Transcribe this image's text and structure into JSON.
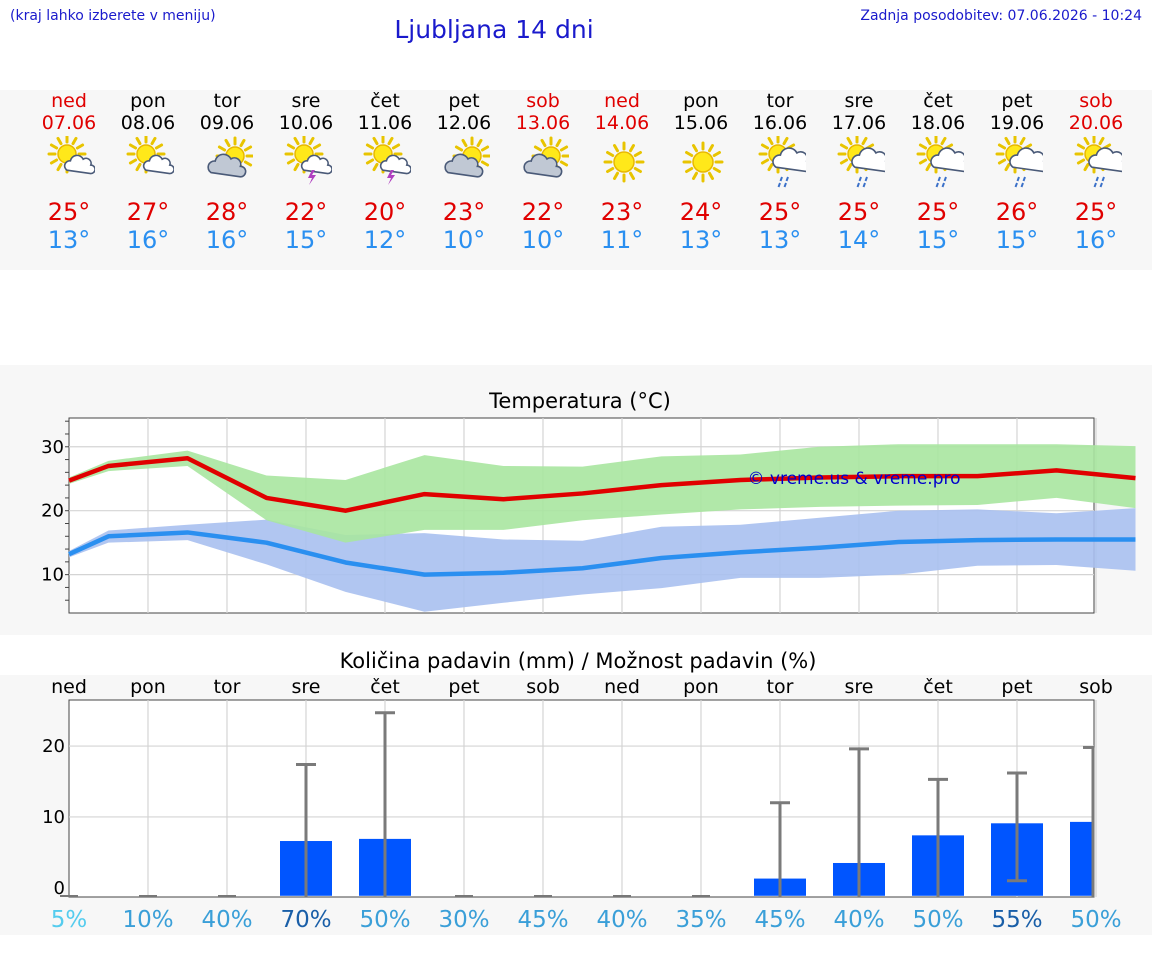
{
  "header": {
    "hint": "(kraj lahko izberete v meniju)",
    "title": "Ljubljana 14 dni",
    "updated": "Zadnja posodobitev: 07.06.2026 - 10:24"
  },
  "colors": {
    "max": "#e00000",
    "min": "#2a8ff0",
    "max_band": "#a8e6a0",
    "min_band": "#a8c0f0",
    "precip_bar": "#0055ff",
    "watermark": "#0000cc"
  },
  "days": [
    {
      "name": "ned",
      "date": "07.06",
      "weekend": true,
      "icon": "sun-cloud",
      "max": "25°",
      "min": "13°"
    },
    {
      "name": "pon",
      "date": "08.06",
      "weekend": false,
      "icon": "sun-cloud",
      "max": "27°",
      "min": "16°"
    },
    {
      "name": "tor",
      "date": "09.06",
      "weekend": false,
      "icon": "cloud-sun",
      "max": "28°",
      "min": "16°"
    },
    {
      "name": "sre",
      "date": "10.06",
      "weekend": false,
      "icon": "sun-cloud-thunder",
      "max": "22°",
      "min": "15°"
    },
    {
      "name": "čet",
      "date": "11.06",
      "weekend": false,
      "icon": "sun-cloud-thunder",
      "max": "20°",
      "min": "12°"
    },
    {
      "name": "pet",
      "date": "12.06",
      "weekend": false,
      "icon": "cloud-sun",
      "max": "23°",
      "min": "10°"
    },
    {
      "name": "sob",
      "date": "13.06",
      "weekend": true,
      "icon": "cloud-sun",
      "max": "22°",
      "min": "10°"
    },
    {
      "name": "ned",
      "date": "14.06",
      "weekend": true,
      "icon": "sun",
      "max": "23°",
      "min": "11°"
    },
    {
      "name": "pon",
      "date": "15.06",
      "weekend": false,
      "icon": "sun",
      "max": "24°",
      "min": "13°"
    },
    {
      "name": "tor",
      "date": "16.06",
      "weekend": false,
      "icon": "sun-cloud-rain",
      "max": "25°",
      "min": "13°"
    },
    {
      "name": "sre",
      "date": "17.06",
      "weekend": false,
      "icon": "sun-cloud-rain",
      "max": "25°",
      "min": "14°"
    },
    {
      "name": "čet",
      "date": "18.06",
      "weekend": false,
      "icon": "sun-cloud-rain",
      "max": "25°",
      "min": "15°"
    },
    {
      "name": "pet",
      "date": "19.06",
      "weekend": false,
      "icon": "sun-cloud-rain",
      "max": "26°",
      "min": "15°"
    },
    {
      "name": "sob",
      "date": "20.06",
      "weekend": true,
      "icon": "sun-cloud-rain",
      "max": "25°",
      "min": "16°"
    }
  ],
  "chart_data": [
    {
      "type": "line",
      "title": "Temperatura (°C)",
      "watermark": "© vreme.us & vreme.pro",
      "y_ticks": [
        10,
        20,
        30
      ],
      "ylim": [
        4,
        34.5
      ],
      "grid": true,
      "x_points": [
        0,
        0.5,
        1.5,
        2.5,
        3.5,
        4.5,
        5.5,
        6.5,
        7.5,
        8.5,
        9.5,
        10.5,
        11.5,
        12.5,
        13.5
      ],
      "series": [
        {
          "values": [
            24.7,
            27,
            28.2,
            22,
            20,
            22.6,
            21.8,
            22.7,
            24,
            24.8,
            25.2,
            25.4,
            25.4,
            26.3,
            25.1
          ]
        },
        {
          "values": [
            13.2,
            16,
            16.6,
            15,
            11.9,
            10,
            10.3,
            11,
            12.6,
            13.5,
            14.2,
            15.1,
            15.4,
            15.5,
            15.5
          ]
        }
      ],
      "max_band": {
        "low": [
          24.2,
          26.2,
          27,
          18.5,
          15,
          17,
          17,
          18.5,
          19.4,
          20.2,
          20.6,
          20.8,
          20.9,
          22,
          20.4
        ],
        "high": [
          25.2,
          27.8,
          29.4,
          25.5,
          24.8,
          28.7,
          27,
          26.9,
          28.5,
          28.8,
          30,
          30.4,
          30.4,
          30.4,
          30.1
        ]
      },
      "min_band": {
        "low": [
          12.7,
          15,
          15.4,
          11.6,
          7.3,
          4.2,
          5.6,
          6.9,
          7.9,
          9.5,
          9.5,
          10,
          11.4,
          11.5,
          10.6
        ],
        "high": [
          13.7,
          16.9,
          17.8,
          18.6,
          16.2,
          16.5,
          15.5,
          15.3,
          17.5,
          17.8,
          18.9,
          20,
          20.2,
          19.6,
          20.4
        ]
      }
    },
    {
      "type": "bar",
      "title": "Količina padavin (mm) / Možnost padavin (%)",
      "categories": [
        "ned",
        "pon",
        "tor",
        "sre",
        "čet",
        "pet",
        "sob",
        "ned",
        "pon",
        "tor",
        "sre",
        "čet",
        "pet",
        "sob"
      ],
      "y_ticks": [
        0,
        10,
        20
      ],
      "ylim": [
        -1.3,
        26.5
      ],
      "values": [
        0,
        0,
        0,
        6.6,
        6.9,
        0,
        0,
        0,
        0,
        1.3,
        3.5,
        7.4,
        9.1,
        9.3
      ],
      "error_high": [
        0,
        0,
        0,
        17.4,
        24.7,
        0,
        0,
        0,
        0,
        12,
        19.6,
        15.3,
        16.2,
        19.8
      ],
      "error_low": [
        0,
        0,
        0,
        0,
        0,
        0,
        0,
        0,
        0,
        0,
        0,
        0,
        1,
        0
      ],
      "probability": [
        "5%",
        "10%",
        "40%",
        "70%",
        "50%",
        "30%",
        "45%",
        "40%",
        "35%",
        "45%",
        "40%",
        "50%",
        "55%",
        "50%"
      ],
      "probability_colors": [
        "#55ccee",
        "#3a9fd8",
        "#3a9fd8",
        "#1a5fa8",
        "#3a9fd8",
        "#3a9fd8",
        "#3a9fd8",
        "#3a9fd8",
        "#3a9fd8",
        "#3a9fd8",
        "#3a9fd8",
        "#3a9fd8",
        "#1a5fa8",
        "#3a9fd8"
      ]
    }
  ]
}
